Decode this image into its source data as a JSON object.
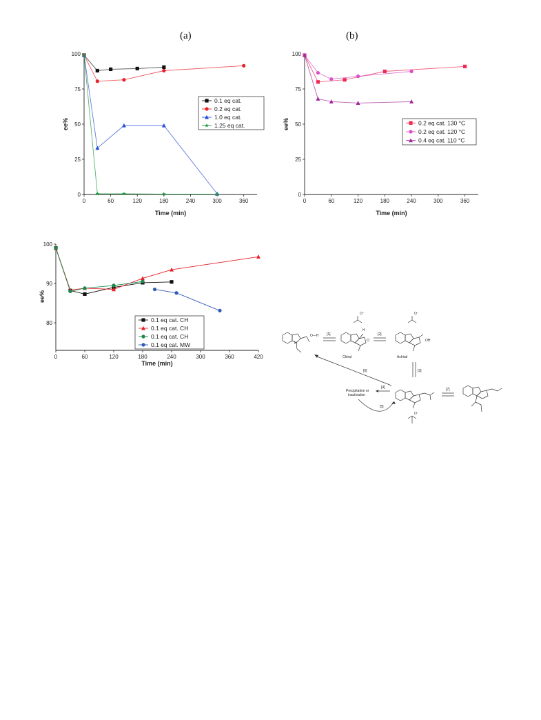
{
  "panels": {
    "a": "(a)",
    "b": "(b)"
  },
  "chart_data": [
    {
      "id": "a",
      "type": "line",
      "xlabel": "Time (min)",
      "ylabel": "ee%",
      "xlim": [
        0,
        390
      ],
      "ylim": [
        0,
        100
      ],
      "xticks": [
        0,
        60,
        120,
        180,
        240,
        300,
        360
      ],
      "yticks": [
        0,
        25,
        50,
        75,
        100
      ],
      "legend_position": "right",
      "series": [
        {
          "name": "0.1 eq cat.",
          "color": "#111111",
          "marker": "square",
          "x": [
            0,
            30,
            60,
            120,
            180
          ],
          "y": [
            99,
            88,
            89,
            89.5,
            90.5
          ]
        },
        {
          "name": "0.2 eq cat.",
          "color": "#e8202a",
          "marker": "circle",
          "x": [
            0,
            30,
            90,
            180,
            360
          ],
          "y": [
            99,
            80.5,
            81.5,
            88,
            91.5
          ]
        },
        {
          "name": "1.0 eq cat.",
          "color": "#2a4fd6",
          "marker": "triangle",
          "x": [
            0,
            30,
            90,
            180,
            300
          ],
          "y": [
            99,
            33,
            49,
            49,
            0.5
          ]
        },
        {
          "name": "1.25 eq cat.",
          "color": "#1a9a3a",
          "marker": "star",
          "x": [
            0,
            30,
            90,
            180,
            300
          ],
          "y": [
            99,
            0.5,
            0.5,
            0.3,
            0.3
          ]
        }
      ]
    },
    {
      "id": "b",
      "type": "line",
      "xlabel": "Time (min)",
      "ylabel": "ee%",
      "xlim": [
        0,
        390
      ],
      "ylim": [
        0,
        100
      ],
      "xticks": [
        0,
        60,
        120,
        180,
        240,
        300,
        360
      ],
      "yticks": [
        0,
        25,
        50,
        75,
        100
      ],
      "legend_position": "right",
      "series": [
        {
          "name": "0.2 eq cat. 130 °C",
          "color": "#ee2a55",
          "marker": "square",
          "x": [
            0,
            30,
            90,
            180,
            360
          ],
          "y": [
            99,
            80,
            81.5,
            87.5,
            91
          ]
        },
        {
          "name": "0.2 eq cat. 120 °C",
          "color": "#d94fc4",
          "marker": "circle",
          "x": [
            0,
            30,
            60,
            120,
            240
          ],
          "y": [
            99,
            86.5,
            82,
            84,
            87.5
          ]
        },
        {
          "name": "0.4 eq cat. 110 °C",
          "color": "#a0289a",
          "marker": "triangle",
          "x": [
            0,
            30,
            60,
            120,
            240
          ],
          "y": [
            99,
            68,
            66,
            65,
            66
          ]
        }
      ]
    },
    {
      "id": "c",
      "type": "line",
      "xlabel": "Time (min)",
      "ylabel": "ee%",
      "xlim": [
        0,
        420
      ],
      "ylim": [
        73,
        100
      ],
      "xticks": [
        0,
        60,
        120,
        180,
        240,
        300,
        360,
        420
      ],
      "yticks": [
        80,
        90,
        100
      ],
      "legend_position": "center",
      "series": [
        {
          "name": "0.1 eq cat. CH",
          "color": "#111111",
          "marker": "square",
          "x": [
            0,
            30,
            60,
            120,
            180,
            240
          ],
          "y": [
            99,
            88.2,
            87.3,
            89,
            90.2,
            90.4
          ]
        },
        {
          "name": "0.1 eq cat. CH",
          "color": "#e8202a",
          "marker": "triangle",
          "x": [
            0,
            30,
            60,
            120,
            180,
            240,
            420
          ],
          "y": [
            99,
            88.3,
            88.8,
            88.5,
            91.3,
            93.5,
            96.8
          ]
        },
        {
          "name": "0.1 eq cat. CH",
          "color": "#1a8a4a",
          "marker": "circle",
          "x": [
            0,
            30,
            60,
            120,
            180
          ],
          "y": [
            99,
            88,
            88.8,
            89.5,
            90.5
          ]
        },
        {
          "name": "0.1 eq cat. MW",
          "color": "#2f5bb5",
          "marker": "circle",
          "x": [
            205,
            250,
            340
          ],
          "y": [
            88.5,
            87.6,
            83.1
          ]
        }
      ]
    }
  ],
  "scheme": {
    "step_labels": [
      "[1]",
      "[2]",
      "[3]",
      "[4]",
      "[5]",
      "[6]",
      "[7]"
    ],
    "chiral": "Chiral",
    "achiral": "Achiral",
    "precipitation": "Precipitation or",
    "inactivation": "inactivation",
    "oh_acid": "O—H",
    "oh": "OH",
    "o": "O",
    "n": "N",
    "h": "H",
    "anion": "O⁻"
  }
}
